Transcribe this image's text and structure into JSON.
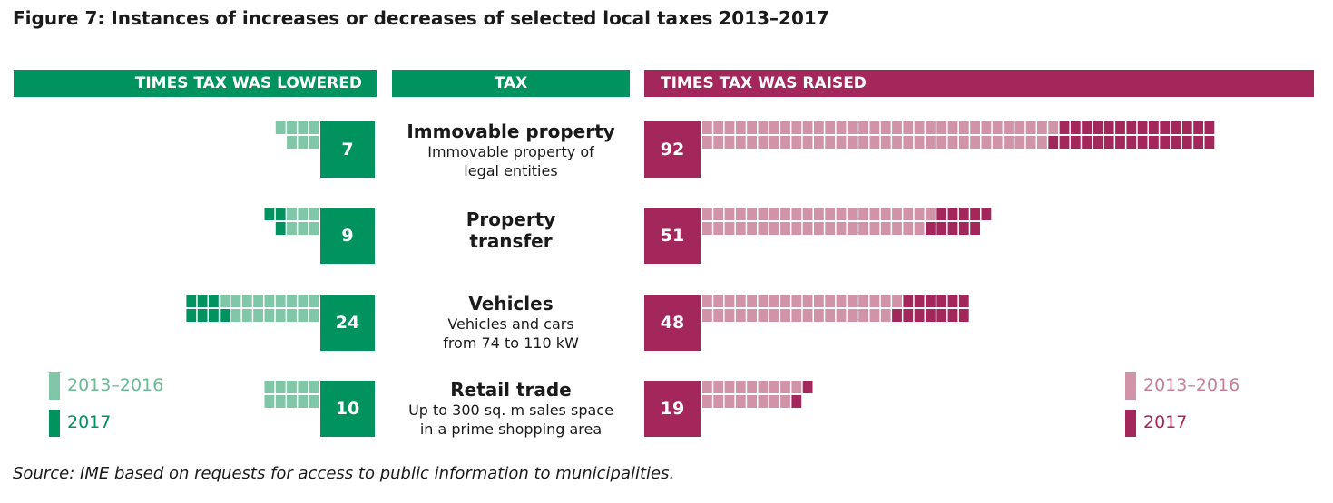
{
  "title": "Figure 7: Instances of increases or decreases of selected local taxes 2013–2017",
  "headers": {
    "lowered": "TIMES TAX WAS LOWERED",
    "tax": "TAX",
    "raised": "TIMES TAX WAS RAISED"
  },
  "colors": {
    "lowered_2013_2016": "#7fc7a6",
    "lowered_2017": "#00925f",
    "raised_2013_2016": "#d193a8",
    "raised_2017": "#a4275b",
    "grid_line": "#ffffff"
  },
  "legend_lowered": [
    {
      "label": "2013–2016",
      "color": "#7fc7a6"
    },
    {
      "label": "2017",
      "color": "#00925f"
    }
  ],
  "legend_raised": [
    {
      "label": "2013–2016",
      "color": "#d193a8"
    },
    {
      "label": "2017",
      "color": "#a4275b"
    }
  ],
  "chart_data": {
    "type": "bar",
    "categories": [
      "Immovable property",
      "Property transfer",
      "Vehicles",
      "Retail trade"
    ],
    "subtitles": [
      [
        "Immovable property of",
        "legal entities"
      ],
      [],
      [
        "Vehicles and cars",
        "from 74 to 110 kW"
      ],
      [
        "Up to 300 sq. m sales space",
        "in a prime shopping area"
      ]
    ],
    "title_lines": [
      [
        "Immovable property"
      ],
      [
        "Property",
        "transfer"
      ],
      [
        "Vehicles"
      ],
      [
        "Retail trade"
      ]
    ],
    "series": [
      {
        "name": "Times tax was lowered",
        "values": [
          7,
          9,
          24,
          10
        ],
        "split_2013_2016": [
          7,
          6,
          17,
          10
        ],
        "split_2017": [
          0,
          3,
          7,
          0
        ]
      },
      {
        "name": "Times tax was raised",
        "values": [
          92,
          51,
          48,
          19
        ],
        "split_2013_2016": [
          63,
          41,
          35,
          17
        ],
        "split_2017": [
          29,
          10,
          13,
          2
        ]
      }
    ]
  },
  "source": "Source: IME based on requests for access to public information to municipalities."
}
